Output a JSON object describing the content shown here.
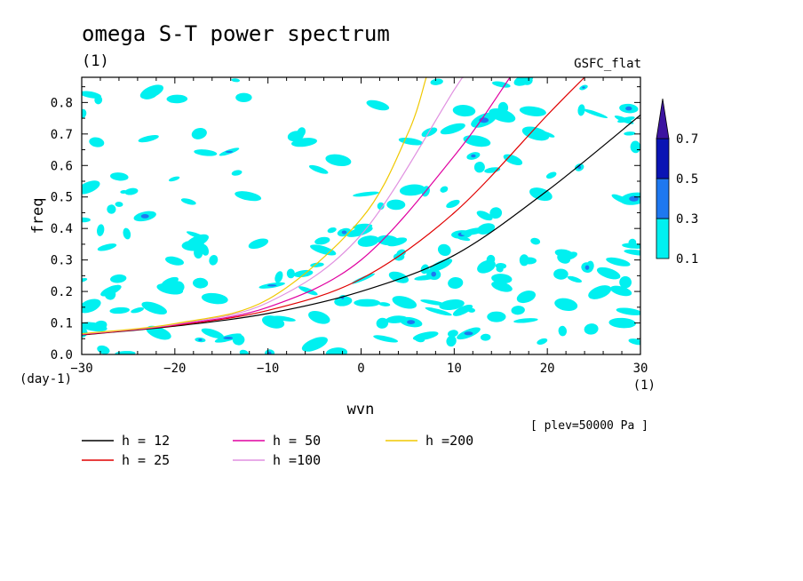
{
  "chart_data": {
    "type": "heatmap",
    "title": "omega S-T power spectrum",
    "subtitle": "(1)",
    "label_right": "GSFC_flat",
    "xlabel": "wvn",
    "ylabel": "freq",
    "x_unit": "(1)",
    "y_unit": "(day-1)",
    "annotation": "[ plev=50000 Pa ]",
    "xlim": [
      -30,
      30
    ],
    "ylim": [
      0,
      0.88
    ],
    "xticks": [
      -30,
      -20,
      -10,
      0,
      10,
      20,
      30
    ],
    "yticks": [
      0.0,
      0.1,
      0.2,
      0.3,
      0.4,
      0.5,
      0.6,
      0.7,
      0.8
    ],
    "xtick_labels": [
      "−30",
      "−20",
      "−10",
      "0",
      "10",
      "20",
      "30"
    ],
    "ytick_labels": [
      "0.0",
      "0.1",
      "0.2",
      "0.3",
      "0.4",
      "0.5",
      "0.6",
      "0.7",
      "0.8"
    ],
    "colorbar": {
      "levels": [
        "0.1",
        "0.3",
        "0.5",
        "0.7"
      ],
      "colors": [
        "#00f0f0",
        "#1e78f0",
        "#0a14b4",
        "#3c14a0"
      ],
      "extend": "max"
    },
    "contour_fill_color": "#00f0f0",
    "series": [
      {
        "name": "h = 12",
        "equivalent_depth": 12,
        "color": "#000000",
        "points": [
          [
            -30,
            0.062
          ],
          [
            -20,
            0.09
          ],
          [
            -10,
            0.13
          ],
          [
            0,
            0.2
          ],
          [
            10,
            0.315
          ],
          [
            20,
            0.52
          ],
          [
            30,
            0.76
          ]
        ]
      },
      {
        "name": "h = 25",
        "equivalent_depth": 25,
        "color": "#e00000",
        "points": [
          [
            -30,
            0.063
          ],
          [
            -20,
            0.092
          ],
          [
            -10,
            0.14
          ],
          [
            0,
            0.24
          ],
          [
            10,
            0.45
          ],
          [
            20,
            0.76
          ],
          [
            24,
            0.88
          ]
        ]
      },
      {
        "name": "h = 50",
        "equivalent_depth": 50,
        "color": "#e000a0",
        "points": [
          [
            -30,
            0.064
          ],
          [
            -20,
            0.094
          ],
          [
            -10,
            0.15
          ],
          [
            0,
            0.3
          ],
          [
            10,
            0.63
          ],
          [
            16,
            0.88
          ]
        ]
      },
      {
        "name": "h =100",
        "equivalent_depth": 100,
        "color": "#e090e0",
        "points": [
          [
            -30,
            0.065
          ],
          [
            -20,
            0.096
          ],
          [
            -10,
            0.165
          ],
          [
            0,
            0.38
          ],
          [
            10,
            0.84
          ],
          [
            11,
            0.88
          ]
        ]
      },
      {
        "name": "h =200",
        "equivalent_depth": 200,
        "color": "#f0c800",
        "points": [
          [
            -30,
            0.066
          ],
          [
            -20,
            0.098
          ],
          [
            -10,
            0.175
          ],
          [
            0,
            0.43
          ],
          [
            5,
            0.7
          ],
          [
            7,
            0.88
          ]
        ]
      }
    ]
  }
}
